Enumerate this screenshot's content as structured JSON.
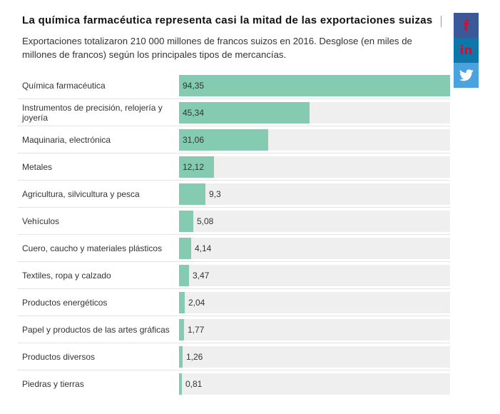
{
  "title": "La química farmacéutica representa casi la mitad de las exportaciones suizas",
  "subtitle": "Exportaciones totalizaron 210 000 millones de francos suizos en 2016. Desglose (en miles de millones de francos) según los principales tipos de mercancías.",
  "share": {
    "facebook_glyph": "f",
    "linkedin_glyph": "in",
    "icons": [
      "facebook-icon",
      "linkedin-icon",
      "twitter-icon"
    ]
  },
  "colors": {
    "bar": "#84cbb1",
    "track": "#efefef"
  },
  "chart_data": {
    "type": "bar",
    "orientation": "horizontal",
    "title": "La química farmacéutica representa casi la mitad de las exportaciones suizas",
    "xlim": [
      0,
      94.35
    ],
    "categories": [
      "Química farmacéutica",
      "Instrumentos de precisión, relojería y joyería",
      "Maquinaria, electrónica",
      "Metales",
      "Agricultura, silvicultura y pesca",
      "Vehículos",
      "Cuero, caucho y materiales plásticos",
      "Textiles, ropa y calzado",
      "Productos energéticos",
      "Papel y productos de las artes gráficas",
      "Productos diversos",
      "Piedras y tierras"
    ],
    "values": [
      94.35,
      45.34,
      31.06,
      12.12,
      9.3,
      5.08,
      4.14,
      3.47,
      2.04,
      1.77,
      1.26,
      0.81
    ],
    "value_labels": [
      "94,35",
      "45,34",
      "31,06",
      "12,12",
      "9,3",
      "5,08",
      "4,14",
      "3,47",
      "2,04",
      "1,77",
      "1,26",
      "0,81"
    ]
  }
}
